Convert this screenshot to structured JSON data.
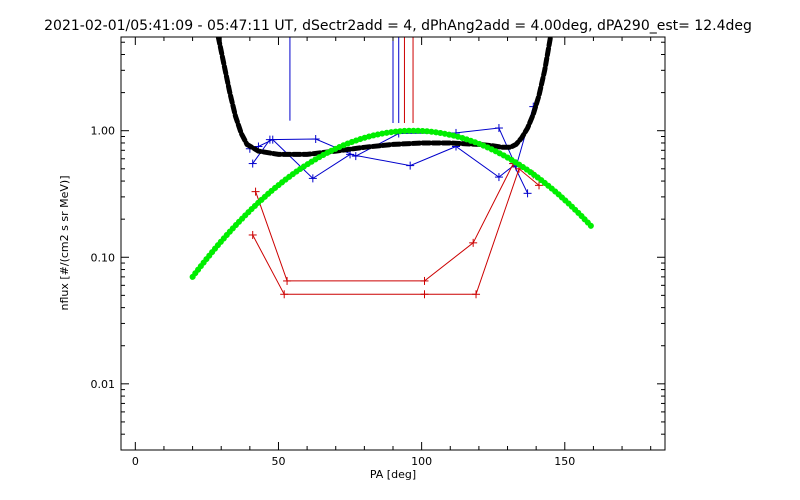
{
  "chart_data": {
    "type": "line",
    "title": "2021-02-01/05:41:09 - 05:47:11 UT, dSectr2add = 4, dPhAng2add = 4.00deg, dPA290_est=  12.4deg",
    "xlabel": "PA [deg]",
    "ylabel": "nflux [#/(cm2 s sr MeV)]",
    "xlim": [
      -5,
      185
    ],
    "ylim": [
      0.003,
      5.5
    ],
    "ylog": true,
    "xticks": [
      0,
      50,
      100,
      150
    ],
    "xtick_labels": [
      "0",
      "50",
      "100",
      "150"
    ],
    "yticks": [
      0.01,
      0.1,
      1.0
    ],
    "ytick_labels": [
      "0.01",
      "0.10",
      "1.00"
    ],
    "grid": false,
    "colors": {
      "blue": "#0000cc",
      "red": "#cc0000",
      "black": "#000000",
      "green": "#00ee00"
    },
    "series": [
      {
        "color": "blue",
        "style": "line-plus",
        "x": [
          40,
          43,
          48,
          62,
          75,
          96,
          112,
          127,
          133
        ],
        "y": [
          0.72,
          0.75,
          0.85,
          0.42,
          0.65,
          0.53,
          0.75,
          0.43,
          0.55
        ]
      },
      {
        "color": "blue",
        "style": "line-plus",
        "x": [
          41,
          47,
          63,
          77,
          92,
          112,
          127,
          133,
          139
        ],
        "y": [
          0.55,
          0.85,
          0.86,
          0.63,
          0.95,
          0.96,
          1.05,
          0.52,
          1.55
        ]
      },
      {
        "color": "blue",
        "style": "line-plus",
        "x": [
          132,
          137
        ],
        "y": [
          0.55,
          0.32
        ]
      },
      {
        "color": "red",
        "style": "line-plus",
        "x": [
          42,
          53,
          101,
          118,
          132,
          139
        ],
        "y": [
          0.33,
          0.065,
          0.065,
          0.13,
          0.55,
          0.45
        ]
      },
      {
        "color": "red",
        "style": "line-plus",
        "x": [
          41,
          52,
          101,
          119,
          134,
          141
        ],
        "y": [
          0.15,
          0.051,
          0.051,
          0.051,
          0.5,
          0.37
        ]
      },
      {
        "color": "black",
        "style": "thick-dashed",
        "x": [
          29,
          31,
          33,
          35,
          37,
          39,
          43,
          50,
          60,
          70,
          80,
          90,
          100,
          110,
          120,
          125,
          128,
          131,
          133,
          135,
          137,
          139,
          141,
          143,
          145
        ],
        "y": [
          5.5,
          3.3,
          2.0,
          1.3,
          0.95,
          0.78,
          0.69,
          0.65,
          0.65,
          0.69,
          0.74,
          0.78,
          0.8,
          0.8,
          0.78,
          0.76,
          0.74,
          0.74,
          0.78,
          0.88,
          1.05,
          1.35,
          1.9,
          3.0,
          5.5
        ]
      },
      {
        "color": "green",
        "style": "thick-dotted",
        "function": "parabola",
        "x_range": [
          20,
          160
        ],
        "peak_x": 97,
        "peak_y": 1.0,
        "end_y": 0.07
      }
    ],
    "vertical_spikes": [
      {
        "color": "blue",
        "x": 54,
        "y_from": 1.2,
        "y_to": 5.5
      },
      {
        "color": "blue",
        "x": 90,
        "y_from": 1.15,
        "y_to": 5.5
      },
      {
        "color": "blue",
        "x": 92,
        "y_from": 1.15,
        "y_to": 5.5
      },
      {
        "color": "red",
        "x": 94,
        "y_from": 1.15,
        "y_to": 5.5
      },
      {
        "color": "red",
        "x": 97,
        "y_from": 1.15,
        "y_to": 5.5
      }
    ]
  }
}
